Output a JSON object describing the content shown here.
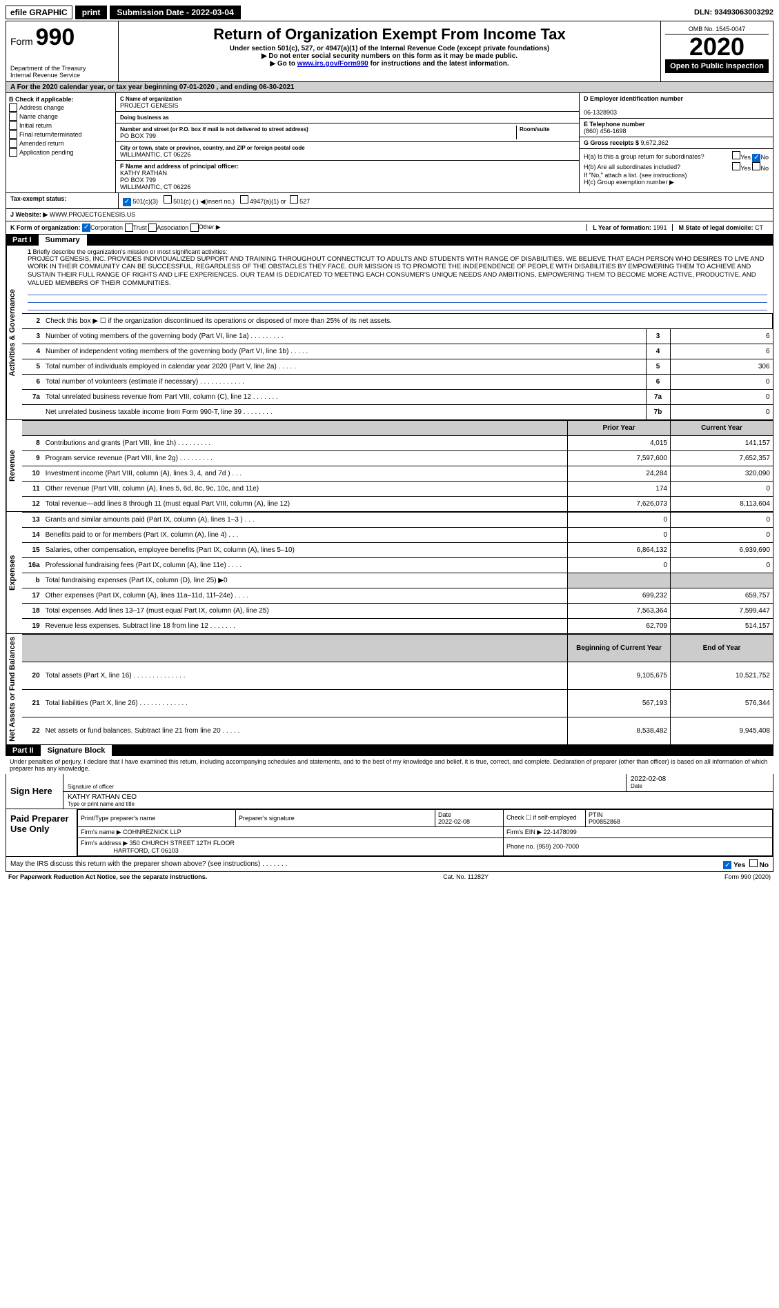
{
  "topbar": {
    "efile": "efile GRAPHIC",
    "print": "print",
    "submission_label": "Submission Date - 2022-03-04",
    "dln": "DLN: 93493063003292"
  },
  "header": {
    "form_label": "Form",
    "form_num": "990",
    "dept": "Department of the Treasury",
    "irs": "Internal Revenue Service",
    "title": "Return of Organization Exempt From Income Tax",
    "sub1": "Under section 501(c), 527, or 4947(a)(1) of the Internal Revenue Code (except private foundations)",
    "sub2": "▶ Do not enter social security numbers on this form as it may be made public.",
    "sub3_pre": "▶ Go to ",
    "sub3_link": "www.irs.gov/Form990",
    "sub3_post": " for instructions and the latest information.",
    "omb": "OMB No. 1545-0047",
    "year": "2020",
    "open": "Open to Public Inspection"
  },
  "period": "A For the 2020 calendar year, or tax year beginning 07-01-2020   , and ending 06-30-2021",
  "checkif": {
    "label": "B Check if applicable:",
    "items": [
      "Address change",
      "Name change",
      "Initial return",
      "Final return/terminated",
      "Amended return",
      "Application pending"
    ]
  },
  "entity": {
    "c_label": "C Name of organization",
    "name": "PROJECT GENESIS",
    "dba_label": "Doing business as",
    "street_label": "Number and street (or P.O. box if mail is not delivered to street address)",
    "room_label": "Room/suite",
    "street": "PO BOX 799",
    "city_label": "City or town, state or province, country, and ZIP or foreign postal code",
    "city": "WILLIMANTIC, CT  06226",
    "f_label": "F Name and address of principal officer:",
    "officer": "KATHY RATHAN",
    "officer_addr1": "PO BOX 799",
    "officer_addr2": "WILLIMANTIC, CT  06226"
  },
  "right": {
    "d_label": "D Employer identification number",
    "ein": "06-1328903",
    "e_label": "E Telephone number",
    "phone": "(860) 456-1698",
    "g_label": "G Gross receipts $ ",
    "gross": "9,672,362",
    "h_a": "H(a)  Is this a group return for subordinates?",
    "h_b": "H(b)  Are all subordinates included?",
    "h_note": "If \"No,\" attach a list. (see instructions)",
    "h_c": "H(c)  Group exemption number ▶",
    "yes": "Yes",
    "no": "No"
  },
  "status": {
    "label": "Tax-exempt status:",
    "opt1": "501(c)(3)",
    "opt2": "501(c) (  ) ◀(insert no.)",
    "opt3": "4947(a)(1) or",
    "opt4": "527"
  },
  "website": {
    "label": "J Website: ▶",
    "url": "WWW.PROJECTGENESIS.US"
  },
  "kform": {
    "label": "K Form of organization:",
    "corp": "Corporation",
    "trust": "Trust",
    "assoc": "Association",
    "other": "Other ▶",
    "l_label": "L Year of formation: ",
    "l_val": "1991",
    "m_label": "M State of legal domicile: ",
    "m_val": "CT"
  },
  "part1": {
    "num": "Part I",
    "title": "Summary"
  },
  "mission": {
    "line1_label": "1",
    "line1_text": "Briefly describe the organization's mission or most significant activities:",
    "text": "PROJECT GENESIS, INC. PROVIDES INDIVIDUALIZED SUPPORT AND TRAINING THROUGHOUT CONNECTICUT TO ADULTS AND STUDENTS WITH RANGE OF DISABILITIES. WE BELIEVE THAT EACH PERSON WHO DESIRES TO LIVE AND WORK IN THEIR COMMUNITY CAN BE SUCCESSFUL, REGARDLESS OF THE OBSTACLES THEY FACE. OUR MISSION IS TO PROMOTE THE INDEPENDENCE OF PEOPLE WITH DISABILITIES BY EMPOWERING THEM TO ACHIEVE AND SUSTAIN THEIR FULL RANGE OF RIGHTS AND LIFE EXPERIENCES. OUR TEAM IS DEDICATED TO MEETING EACH CONSUMER'S UNIQUE NEEDS AND AMBITIONS, EMPOWERING THEM TO BECOME MORE ACTIVE, PRODUCTIVE, AND VALUED MEMBERS OF THEIR COMMUNITIES."
  },
  "gov_lines": [
    {
      "n": "2",
      "desc": "Check this box ▶ ☐ if the organization discontinued its operations or disposed of more than 25% of its net assets."
    },
    {
      "n": "3",
      "desc": "Number of voting members of the governing body (Part VI, line 1a)  .   .   .   .   .   .   .   .   .",
      "box": "3",
      "val": "6"
    },
    {
      "n": "4",
      "desc": "Number of independent voting members of the governing body (Part VI, line 1b)  .   .   .   .   .",
      "box": "4",
      "val": "6"
    },
    {
      "n": "5",
      "desc": "Total number of individuals employed in calendar year 2020 (Part V, line 2a)  .   .   .   .   .",
      "box": "5",
      "val": "306"
    },
    {
      "n": "6",
      "desc": "Total number of volunteers (estimate if necessary)   .   .   .   .   .   .   .   .   .   .   .   .",
      "box": "6",
      "val": "0"
    },
    {
      "n": "7a",
      "desc": "Total unrelated business revenue from Part VIII, column (C), line 12  .   .   .   .   .   .   .",
      "box": "7a",
      "val": "0"
    },
    {
      "n": "",
      "desc": "Net unrelated business taxable income from Form 990-T, line 39   .   .   .   .   .   .   .   .",
      "box": "7b",
      "val": "0"
    }
  ],
  "two_col_hdr": {
    "prior": "Prior Year",
    "current": "Current Year"
  },
  "revenue": [
    {
      "n": "8",
      "desc": "Contributions and grants (Part VIII, line 1h)   .   .   .   .   .   .   .   .   .",
      "p": "4,015",
      "c": "141,157"
    },
    {
      "n": "9",
      "desc": "Program service revenue (Part VIII, line 2g)  .   .   .   .   .   .   .   .   .",
      "p": "7,597,600",
      "c": "7,652,357"
    },
    {
      "n": "10",
      "desc": "Investment income (Part VIII, column (A), lines 3, 4, and 7d )   .   .   .",
      "p": "24,284",
      "c": "320,090"
    },
    {
      "n": "11",
      "desc": "Other revenue (Part VIII, column (A), lines 5, 6d, 8c, 9c, 10c, and 11e)",
      "p": "174",
      "c": "0"
    },
    {
      "n": "12",
      "desc": "Total revenue—add lines 8 through 11 (must equal Part VIII, column (A), line 12)",
      "p": "7,626,073",
      "c": "8,113,604"
    }
  ],
  "expenses": [
    {
      "n": "13",
      "desc": "Grants and similar amounts paid (Part IX, column (A), lines 1–3 )  .   .   .",
      "p": "0",
      "c": "0"
    },
    {
      "n": "14",
      "desc": "Benefits paid to or for members (Part IX, column (A), line 4)  .   .   .",
      "p": "0",
      "c": "0"
    },
    {
      "n": "15",
      "desc": "Salaries, other compensation, employee benefits (Part IX, column (A), lines 5–10)",
      "p": "6,864,132",
      "c": "6,939,690"
    },
    {
      "n": "16a",
      "desc": "Professional fundraising fees (Part IX, column (A), line 11e)  .   .   .   .",
      "p": "0",
      "c": "0"
    },
    {
      "n": "b",
      "desc": "Total fundraising expenses (Part IX, column (D), line 25) ▶0",
      "p": "",
      "c": "",
      "shade": true
    },
    {
      "n": "17",
      "desc": "Other expenses (Part IX, column (A), lines 11a–11d, 11f–24e)   .   .   .   .",
      "p": "699,232",
      "c": "659,757"
    },
    {
      "n": "18",
      "desc": "Total expenses. Add lines 13–17 (must equal Part IX, column (A), line 25)",
      "p": "7,563,364",
      "c": "7,599,447"
    },
    {
      "n": "19",
      "desc": "Revenue less expenses. Subtract line 18 from line 12  .   .   .   .   .   .   .",
      "p": "62,709",
      "c": "514,157"
    }
  ],
  "net_hdr": {
    "beg": "Beginning of Current Year",
    "end": "End of Year"
  },
  "netassets": [
    {
      "n": "20",
      "desc": "Total assets (Part X, line 16)  .   .   .   .   .   .   .   .   .   .   .   .   .   .",
      "p": "9,105,675",
      "c": "10,521,752"
    },
    {
      "n": "21",
      "desc": "Total liabilities (Part X, line 26)  .   .   .   .   .   .   .   .   .   .   .   .   .",
      "p": "567,193",
      "c": "576,344"
    },
    {
      "n": "22",
      "desc": "Net assets or fund balances. Subtract line 21 from line 20  .   .   .   .   .",
      "p": "8,538,482",
      "c": "9,945,408"
    }
  ],
  "side_labels": {
    "gov": "Activities & Governance",
    "rev": "Revenue",
    "exp": "Expenses",
    "net": "Net Assets or Fund Balances"
  },
  "part2": {
    "num": "Part II",
    "title": "Signature Block"
  },
  "sig": {
    "intro": "Under penalties of perjury, I declare that I have examined this return, including accompanying schedules and statements, and to the best of my knowledge and belief, it is true, correct, and complete. Declaration of preparer (other than officer) is based on all information of which preparer has any knowledge.",
    "sign_here": "Sign Here",
    "sig_officer": "Signature of officer",
    "date_label": "Date",
    "date": "2022-02-08",
    "name_title": "KATHY RATHAN  CEO",
    "type_label": "Type or print name and title"
  },
  "prep": {
    "label": "Paid Preparer Use Only",
    "h1": "Print/Type preparer's name",
    "h2": "Preparer's signature",
    "h3": "Date",
    "h3v": "2022-02-08",
    "h4": "Check ☐ if self-employed",
    "h5": "PTIN",
    "ptin": "P00852868",
    "firm_label": "Firm's name    ▶",
    "firm": "COHNREZNICK LLP",
    "ein_label": "Firm's EIN ▶",
    "ein": "22-1478099",
    "addr_label": "Firm's address ▶",
    "addr1": "350 CHURCH STREET 12TH FLOOR",
    "addr2": "HARTFORD, CT  06103",
    "phone_label": "Phone no.",
    "phone": "(959) 200-7000"
  },
  "footer": {
    "discuss": "May the IRS discuss this return with the preparer shown above? (see instructions)   .   .   .   .   .   .   .",
    "yes": "Yes",
    "no": "No",
    "pra": "For Paperwork Reduction Act Notice, see the separate instructions.",
    "cat": "Cat. No. 11282Y",
    "form": "Form 990 (2020)"
  }
}
